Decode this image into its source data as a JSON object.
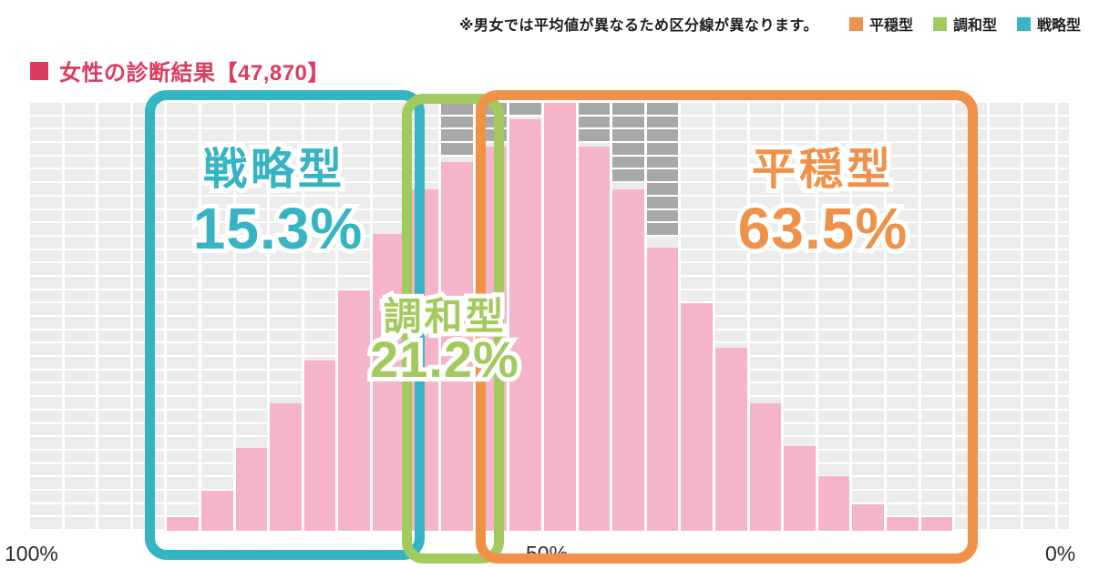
{
  "note": {
    "text": "※男女では平均値が異なるため区分線が異なります。"
  },
  "legend": {
    "items": [
      {
        "label": "平穏型",
        "color": "#f0914a"
      },
      {
        "label": "調和型",
        "color": "#a3ca5f"
      },
      {
        "label": "戦略型",
        "color": "#3ab5c4"
      }
    ]
  },
  "title": {
    "text": "女性の診断結果【47,870】",
    "color": "#dc3b5e"
  },
  "chart_data": {
    "type": "bar",
    "subtype": "histogram-on-grid",
    "title": "女性の診断結果【47,870】",
    "sample_size": "47,870",
    "x_axis": {
      "ticks": [
        "100%",
        "50%",
        "0%"
      ],
      "direction": "left=100%, right=0%"
    },
    "grid": {
      "columns": 31,
      "rows": 32,
      "grid_on": true
    },
    "colors": {
      "bar_pink": "#f6b4c9",
      "grid_cell": "#ececec",
      "overflow_gray": "#a8a8a8",
      "strategic": "#35b4c4",
      "harmony": "#a3ca5f",
      "calm": "#f0914a",
      "title_red": "#dc3b5e"
    },
    "bars_rows": [
      0,
      0,
      0,
      0,
      1,
      3,
      6.2,
      9.5,
      12.7,
      18,
      22.2,
      25.5,
      27.6,
      28.7,
      30.8,
      32,
      28.7,
      25.5,
      21.2,
      17,
      13.7,
      9.5,
      6.3,
      4.1,
      2,
      1,
      1,
      0,
      0,
      0,
      0
    ],
    "gray_cells_from_top": [
      0,
      0,
      0,
      0,
      0,
      0,
      0,
      0,
      0,
      0,
      0,
      0,
      4,
      3,
      1,
      0,
      3,
      6,
      10,
      0,
      0,
      0,
      0,
      0,
      0,
      0,
      0,
      0,
      0,
      0,
      0
    ],
    "regions": [
      {
        "name": "戦略型",
        "percent": "15.3%",
        "color": "#35b4c4",
        "col_start": 5,
        "col_end": 11
      },
      {
        "name": "調和型",
        "percent": "21.2%",
        "color": "#a3ca5f",
        "col_start": 12,
        "col_end": 13
      },
      {
        "name": "平穏型",
        "percent": "63.5%",
        "color": "#f0914a",
        "col_start": 14,
        "col_end": 27
      }
    ]
  }
}
